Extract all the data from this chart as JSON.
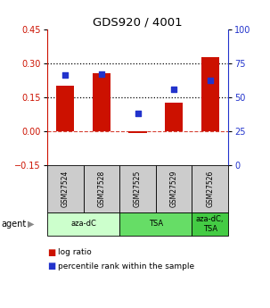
{
  "title": "GDS920 / 4001",
  "samples": [
    "GSM27524",
    "GSM27528",
    "GSM27525",
    "GSM27529",
    "GSM27526"
  ],
  "log_ratio": [
    0.2,
    0.255,
    -0.01,
    0.125,
    0.325
  ],
  "percentile_rank": [
    66,
    67,
    38,
    56,
    62
  ],
  "ylim_left": [
    -0.15,
    0.45
  ],
  "ylim_right": [
    0,
    100
  ],
  "yticks_left": [
    -0.15,
    0,
    0.15,
    0.3,
    0.45
  ],
  "yticks_right": [
    0,
    25,
    50,
    75,
    100
  ],
  "hlines_dotted": [
    0.15,
    0.3
  ],
  "hline_dashed": 0.0,
  "bar_color": "#cc1100",
  "dot_color": "#2233cc",
  "agent_groups": [
    {
      "label": "aza-dC",
      "spans": [
        0,
        1
      ],
      "color": "#ccffcc"
    },
    {
      "label": "TSA",
      "spans": [
        2,
        3
      ],
      "color": "#66dd66"
    },
    {
      "label": "aza-dC,\nTSA",
      "spans": [
        4,
        4
      ],
      "color": "#44cc44"
    }
  ],
  "legend_bar_label": "log ratio",
  "legend_dot_label": "percentile rank within the sample",
  "agent_label": "agent",
  "sample_box_color": "#cccccc",
  "background_color": "#ffffff"
}
